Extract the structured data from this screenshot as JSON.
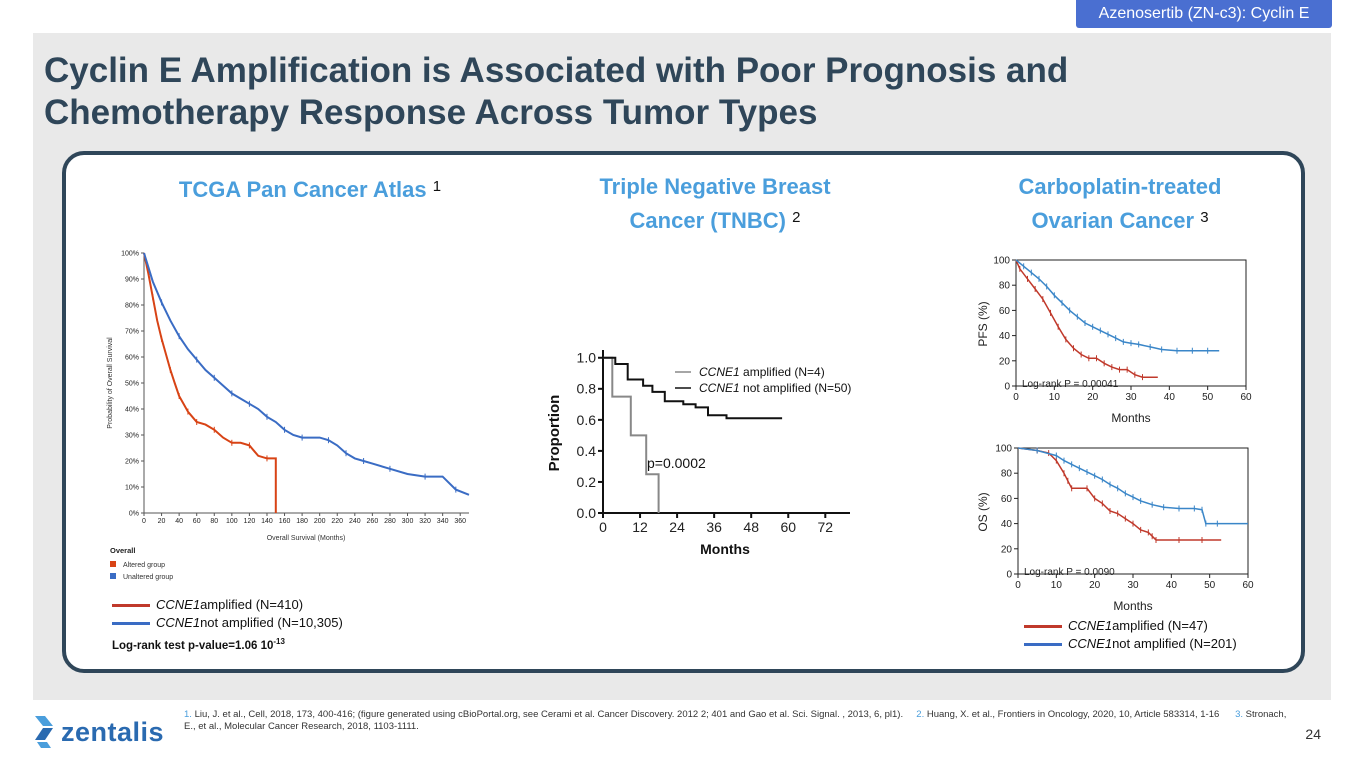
{
  "header_tag": "Azenosertib (ZN-c3): Cyclin E",
  "title": "Cyclin E Amplification is Associated with Poor Prognosis and Chemotherapy Response Across Tumor Types",
  "panels": {
    "tcga": {
      "title": "TCGA Pan Cancer Atlas",
      "ref": "1"
    },
    "tnbc": {
      "title": "Triple Negative Breast Cancer (TNBC)",
      "ref": "2"
    },
    "ovarian": {
      "title": "Carboplatin-treated Ovarian Cancer",
      "ref": "3"
    }
  },
  "tcga_legend": {
    "amp_gene": "CCNE1",
    "amp_text": " amplified (N=410)",
    "not_gene": "CCNE1",
    "not_text": " not amplified (N=10,305)",
    "logrank_text": "Log-rank test p-value=1.06  10",
    "logrank_exp": "-13"
  },
  "ovarian_legend": {
    "amp_gene": "CCNE1",
    "amp_text": " amplified (N=47)",
    "not_gene": "CCNE1",
    "not_text": " not amplified (N=201)"
  },
  "footnote": {
    "n1": "1.",
    "t1": " Liu, J. et al., Cell, 2018, 173, 400-416; (figure generated using cBioPortal.org, see Cerami et al. Cancer Discovery. 2012 2; 401 and Gao et al. Sci. Signal. , 2013, 6, pl1).",
    "n2": "2.",
    "t2": " Huang, X. et al., Frontiers in Oncology, 2020, 10, Article 583314, 1-16",
    "n3": "3.",
    "t3": " Stronach, E., et al., Molecular Cancer Research, 2018, 1103-1111."
  },
  "logo_text": "zentalis",
  "page_number": "24",
  "colors": {
    "amplified": "#c0392b",
    "not_amplified": "#3a6cc4",
    "accent": "#4a9edc",
    "navy": "#2f4659"
  },
  "chart_data": [
    {
      "type": "line",
      "id": "tcga",
      "xlabel": "Overall Survival (Months)",
      "ylabel": "Probability of Overall Survival",
      "xticks": [
        0,
        20,
        40,
        60,
        80,
        100,
        120,
        140,
        160,
        180,
        200,
        220,
        240,
        260,
        280,
        300,
        320,
        340,
        360
      ],
      "yticks": [
        "0%",
        "10%",
        "20%",
        "30%",
        "40%",
        "50%",
        "60%",
        "70%",
        "80%",
        "90%",
        "100%"
      ],
      "xlim": [
        0,
        370
      ],
      "ylim": [
        0,
        100
      ],
      "legend_title": "Overall",
      "legend": [
        "Altered group",
        "Unaltered group"
      ],
      "series": [
        {
          "name": "Altered group",
          "color": "#d84315",
          "points": [
            [
              0,
              100
            ],
            [
              5,
              92
            ],
            [
              10,
              83
            ],
            [
              15,
              74
            ],
            [
              20,
              67
            ],
            [
              25,
              61
            ],
            [
              30,
              55
            ],
            [
              35,
              50
            ],
            [
              40,
              45
            ],
            [
              45,
              42
            ],
            [
              50,
              39
            ],
            [
              55,
              37
            ],
            [
              60,
              35
            ],
            [
              70,
              34
            ],
            [
              80,
              32
            ],
            [
              90,
              29
            ],
            [
              100,
              27
            ],
            [
              110,
              27
            ],
            [
              120,
              26
            ],
            [
              130,
              22
            ],
            [
              140,
              21
            ],
            [
              150,
              21
            ],
            [
              150,
              0
            ]
          ]
        },
        {
          "name": "Unaltered group",
          "color": "#3a6cc4",
          "points": [
            [
              0,
              100
            ],
            [
              10,
              89
            ],
            [
              20,
              81
            ],
            [
              30,
              74
            ],
            [
              40,
              68
            ],
            [
              50,
              63
            ],
            [
              60,
              59
            ],
            [
              70,
              55
            ],
            [
              80,
              52
            ],
            [
              90,
              49
            ],
            [
              100,
              46
            ],
            [
              110,
              44
            ],
            [
              120,
              42
            ],
            [
              130,
              40
            ],
            [
              140,
              37
            ],
            [
              150,
              35
            ],
            [
              160,
              32
            ],
            [
              170,
              30
            ],
            [
              180,
              29
            ],
            [
              200,
              29
            ],
            [
              210,
              28
            ],
            [
              220,
              26
            ],
            [
              230,
              23
            ],
            [
              240,
              21
            ],
            [
              250,
              20
            ],
            [
              260,
              19
            ],
            [
              280,
              17
            ],
            [
              300,
              15
            ],
            [
              320,
              14
            ],
            [
              340,
              14
            ],
            [
              355,
              9
            ],
            [
              370,
              7
            ]
          ]
        }
      ]
    },
    {
      "type": "line",
      "id": "tnbc",
      "xlabel": "Months",
      "ylabel": "Proportion",
      "xticks": [
        0,
        12,
        24,
        36,
        48,
        60,
        72
      ],
      "yticks": [
        "0.0",
        "0.2",
        "0.4",
        "0.6",
        "0.8",
        "1.0"
      ],
      "xlim": [
        0,
        80
      ],
      "ylim": [
        0,
        1.05
      ],
      "annotation": "p=0.0002",
      "legend_amp_gene": "CCNE1",
      "legend_amp_text": " amplified (N=4)",
      "legend_not_gene": "CCNE1",
      "legend_not_text": " not amplified (N=50)",
      "series": [
        {
          "name": "CCNE1 amplified (N=4)",
          "color": "#888888",
          "points": [
            [
              0,
              1.0
            ],
            [
              3,
              1.0
            ],
            [
              3,
              0.75
            ],
            [
              9,
              0.75
            ],
            [
              9,
              0.5
            ],
            [
              14,
              0.5
            ],
            [
              14,
              0.25
            ],
            [
              18,
              0.25
            ],
            [
              18,
              0
            ]
          ]
        },
        {
          "name": "CCNE1 not amplified (N=50)",
          "color": "#111111",
          "points": [
            [
              0,
              1.0
            ],
            [
              4,
              1.0
            ],
            [
              4,
              0.96
            ],
            [
              8,
              0.96
            ],
            [
              8,
              0.86
            ],
            [
              13,
              0.86
            ],
            [
              13,
              0.82
            ],
            [
              16,
              0.82
            ],
            [
              16,
              0.78
            ],
            [
              20,
              0.78
            ],
            [
              20,
              0.72
            ],
            [
              26,
              0.72
            ],
            [
              26,
              0.7
            ],
            [
              30,
              0.7
            ],
            [
              30,
              0.68
            ],
            [
              34,
              0.68
            ],
            [
              34,
              0.63
            ],
            [
              40,
              0.63
            ],
            [
              40,
              0.61
            ],
            [
              58,
              0.61
            ]
          ]
        }
      ]
    },
    {
      "type": "line",
      "id": "ovarian_pfs",
      "xlabel": "Months",
      "ylabel": "PFS (%)",
      "xticks": [
        0,
        10,
        20,
        30,
        40,
        50,
        60
      ],
      "yticks": [
        "0",
        "20",
        "40",
        "60",
        "80",
        "100"
      ],
      "xlim": [
        0,
        60
      ],
      "ylim": [
        0,
        100
      ],
      "annotation": "Log-rank P = 0.00041",
      "series": [
        {
          "name": "CCNE1 amplified (N=47)",
          "color": "#c0392b",
          "points": [
            [
              0,
              100
            ],
            [
              1,
              93
            ],
            [
              3,
              85
            ],
            [
              5,
              77
            ],
            [
              7,
              69
            ],
            [
              9,
              58
            ],
            [
              11,
              47
            ],
            [
              13,
              37
            ],
            [
              15,
              30
            ],
            [
              17,
              25
            ],
            [
              19,
              22
            ],
            [
              21,
              22
            ],
            [
              23,
              18
            ],
            [
              25,
              15
            ],
            [
              27,
              13
            ],
            [
              29,
              13
            ],
            [
              31,
              9
            ],
            [
              33,
              7
            ],
            [
              37,
              7
            ]
          ]
        },
        {
          "name": "CCNE1 not amplified (N=201)",
          "color": "#3a86c8",
          "points": [
            [
              0,
              100
            ],
            [
              2,
              95
            ],
            [
              4,
              90
            ],
            [
              6,
              85
            ],
            [
              8,
              79
            ],
            [
              10,
              72
            ],
            [
              12,
              66
            ],
            [
              14,
              60
            ],
            [
              16,
              55
            ],
            [
              18,
              50
            ],
            [
              20,
              47
            ],
            [
              22,
              44
            ],
            [
              24,
              41
            ],
            [
              26,
              38
            ],
            [
              28,
              35
            ],
            [
              30,
              34
            ],
            [
              32,
              33
            ],
            [
              35,
              31
            ],
            [
              38,
              29
            ],
            [
              42,
              28
            ],
            [
              46,
              28
            ],
            [
              50,
              28
            ],
            [
              53,
              28
            ]
          ]
        }
      ]
    },
    {
      "type": "line",
      "id": "ovarian_os",
      "xlabel": "Months",
      "ylabel": "OS (%)",
      "xticks": [
        0,
        10,
        20,
        30,
        40,
        50,
        60
      ],
      "yticks": [
        "0",
        "20",
        "40",
        "60",
        "80",
        "100"
      ],
      "xlim": [
        0,
        60
      ],
      "ylim": [
        0,
        100
      ],
      "annotation": "Log-rank P = 0.0090",
      "series": [
        {
          "name": "CCNE1 amplified (N=47)",
          "color": "#c0392b",
          "points": [
            [
              0,
              100
            ],
            [
              5,
              98
            ],
            [
              8,
              96
            ],
            [
              10,
              90
            ],
            [
              12,
              80
            ],
            [
              13,
              74
            ],
            [
              14,
              68
            ],
            [
              18,
              68
            ],
            [
              20,
              60
            ],
            [
              22,
              56
            ],
            [
              24,
              50
            ],
            [
              26,
              48
            ],
            [
              28,
              44
            ],
            [
              30,
              40
            ],
            [
              32,
              35
            ],
            [
              34,
              33
            ],
            [
              35,
              30
            ],
            [
              36,
              27
            ],
            [
              42,
              27
            ],
            [
              48,
              27
            ],
            [
              53,
              27
            ]
          ]
        },
        {
          "name": "CCNE1 not amplified (N=201)",
          "color": "#3a86c8",
          "points": [
            [
              0,
              100
            ],
            [
              5,
              98
            ],
            [
              10,
              94
            ],
            [
              12,
              90
            ],
            [
              14,
              87
            ],
            [
              16,
              84
            ],
            [
              18,
              81
            ],
            [
              20,
              78
            ],
            [
              22,
              75
            ],
            [
              24,
              71
            ],
            [
              26,
              68
            ],
            [
              28,
              64
            ],
            [
              30,
              61
            ],
            [
              32,
              58
            ],
            [
              35,
              55
            ],
            [
              38,
              53
            ],
            [
              42,
              52
            ],
            [
              46,
              52
            ],
            [
              48,
              51
            ],
            [
              49,
              40
            ],
            [
              52,
              40
            ],
            [
              60,
              40
            ]
          ]
        }
      ]
    }
  ]
}
